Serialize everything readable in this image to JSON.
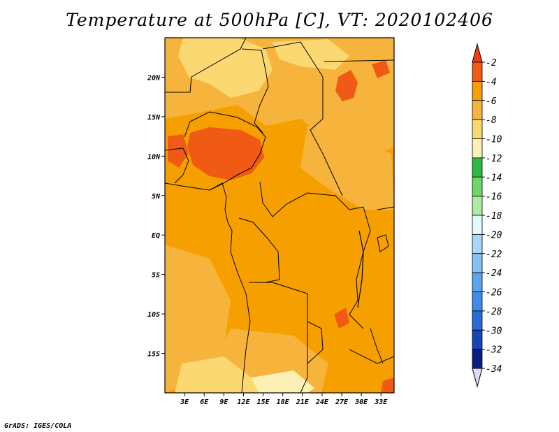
{
  "title": "Temperature at 500hPa [C], VT: 2020102406",
  "credit": "GrADS: IGES/COLA",
  "map": {
    "lon_range": [
      0,
      35
    ],
    "lat_range": [
      -20,
      25
    ],
    "y_ticks": [
      {
        "lat": 20,
        "label": "20N"
      },
      {
        "lat": 15,
        "label": "15N"
      },
      {
        "lat": 10,
        "label": "10N"
      },
      {
        "lat": 5,
        "label": "5N"
      },
      {
        "lat": 0,
        "label": "EQ"
      },
      {
        "lat": -5,
        "label": "5S"
      },
      {
        "lat": -10,
        "label": "10S"
      },
      {
        "lat": -15,
        "label": "15S"
      }
    ],
    "x_ticks": [
      {
        "lon": 3,
        "label": "3E"
      },
      {
        "lon": 6,
        "label": "6E"
      },
      {
        "lon": 9,
        "label": "9E"
      },
      {
        "lon": 12,
        "label": "12E"
      },
      {
        "lon": 15,
        "label": "15E"
      },
      {
        "lon": 18,
        "label": "18E"
      },
      {
        "lon": 21,
        "label": "21E"
      },
      {
        "lon": 24,
        "label": "24E"
      },
      {
        "lon": 27,
        "label": "27E"
      },
      {
        "lon": 30,
        "label": "30E"
      },
      {
        "lon": 33,
        "label": "33E"
      }
    ]
  },
  "colorbar": {
    "labels": [
      "-2",
      "-4",
      "-6",
      "-8",
      "-10",
      "-12",
      "-14",
      "-16",
      "-18",
      "-20",
      "-22",
      "-24",
      "-26",
      "-28",
      "-30",
      "-32",
      "-34"
    ],
    "colors": [
      "#f05a14",
      "#f5a000",
      "#f7b43c",
      "#fcd873",
      "#fdf0b4",
      "#2eb844",
      "#6ed866",
      "#aaeca4",
      "#e4faf8",
      "#a8d6f8",
      "#88c0f4",
      "#5aa4f0",
      "#3c8ce8",
      "#286cd8",
      "#1446b8",
      "#0a1e82"
    ],
    "top_arrow_color": "#f03c14",
    "bottom_arrow_color": "#dcdcf4"
  }
}
